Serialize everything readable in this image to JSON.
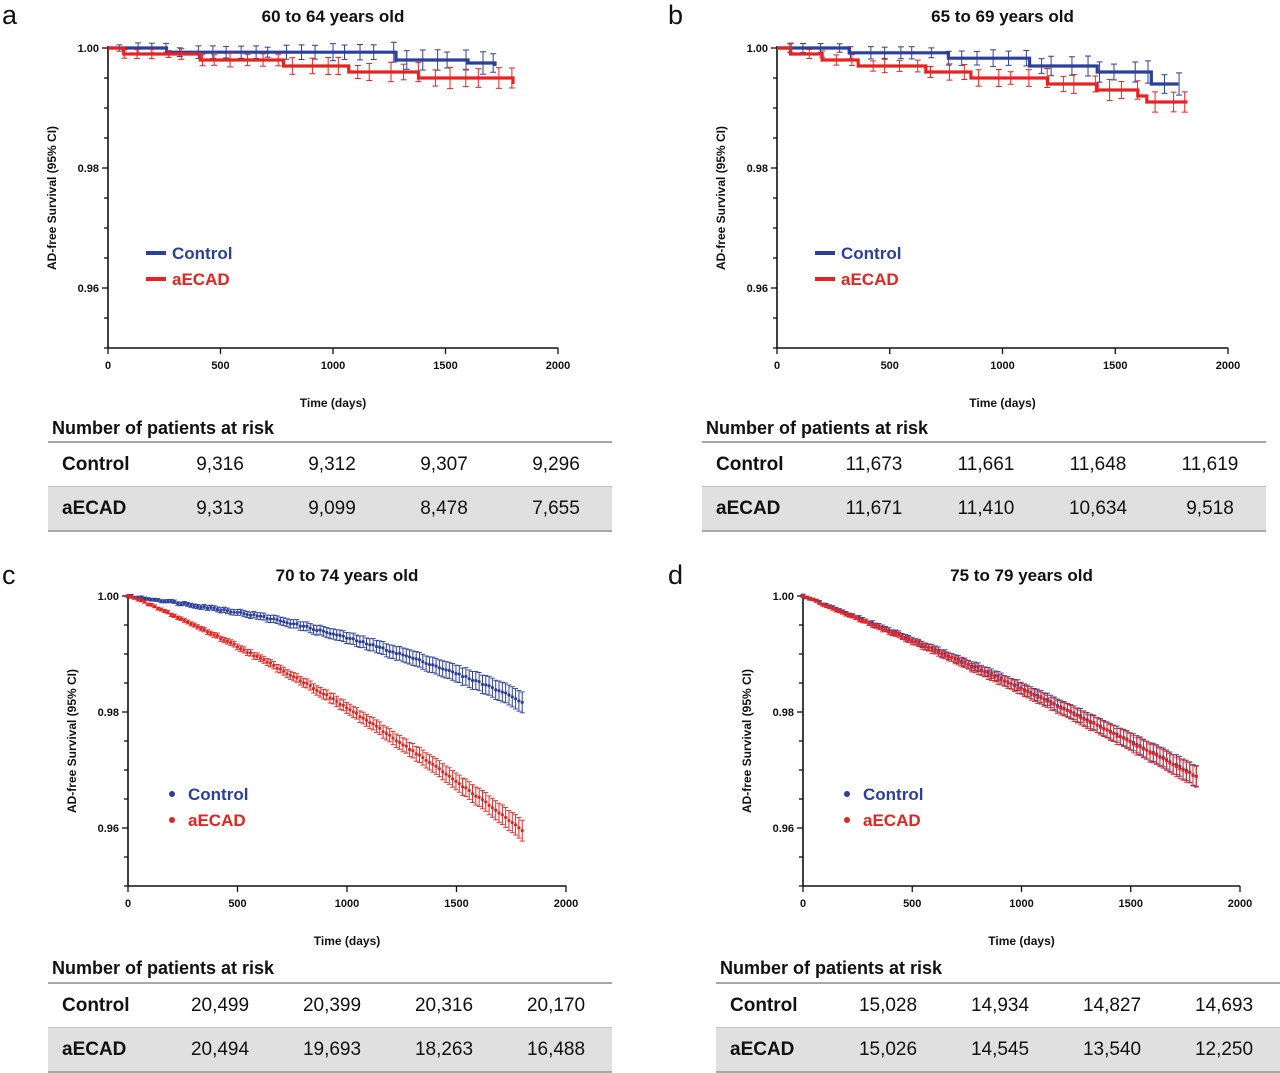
{
  "figure": {
    "colors": {
      "control": "#2b3f9c",
      "aecad": "#e52421",
      "axis": "#111111"
    },
    "risk_header": "Number of patients at risk"
  },
  "chart_data": [
    {
      "letter": "a",
      "type": "line",
      "title": "60 to 64 years old",
      "xlabel": "Time (days)",
      "ylabel": "AD-free Survival (95% CI)",
      "xlim": [
        0,
        2000
      ],
      "ylim": [
        0.95,
        1.0
      ],
      "x_ticks": [
        "0",
        "500",
        "1000",
        "1500",
        "2000"
      ],
      "y_ticks": [
        "1.00",
        "0.98",
        "0.96"
      ],
      "legend_style": "line",
      "legend_position": "middle-left",
      "series": [
        {
          "name": "Control",
          "color": "#2b3f9c",
          "x": [
            0,
            240,
            260,
            1260,
            1280,
            1580,
            1600,
            1720
          ],
          "y": [
            1.0,
            1.0,
            0.9993,
            0.9993,
            0.998,
            0.998,
            0.9975,
            0.997
          ]
        },
        {
          "name": "aECAD",
          "color": "#e52421",
          "x": [
            0,
            60,
            70,
            390,
            410,
            760,
            780,
            1050,
            1070,
            1360,
            1380,
            1780,
            1800
          ],
          "y": [
            1.0,
            1.0,
            0.999,
            0.999,
            0.998,
            0.998,
            0.997,
            0.997,
            0.996,
            0.996,
            0.995,
            0.995,
            0.994
          ]
        }
      ],
      "risk_table": {
        "rows": [
          {
            "label": "Control",
            "values": [
              "9,316",
              "9,312",
              "9,307",
              "9,296"
            ]
          },
          {
            "label": "aECAD",
            "values": [
              "9,313",
              "9,099",
              "8,478",
              "7,655"
            ]
          }
        ]
      }
    },
    {
      "letter": "b",
      "type": "line",
      "title": "65 to 69 years old",
      "xlabel": "Time (days)",
      "ylabel": "AD-free Survival (95% CI)",
      "xlim": [
        0,
        2000
      ],
      "ylim": [
        0.95,
        1.0
      ],
      "x_ticks": [
        "0",
        "500",
        "1000",
        "1500",
        "2000"
      ],
      "y_ticks": [
        "1.00",
        "0.98",
        "0.96"
      ],
      "legend_style": "line",
      "legend_position": "middle-left",
      "series": [
        {
          "name": "Control",
          "color": "#2b3f9c",
          "x": [
            0,
            300,
            320,
            740,
            760,
            1100,
            1120,
            1400,
            1420,
            1640,
            1660,
            1780
          ],
          "y": [
            1.0,
            1.0,
            0.9992,
            0.9992,
            0.9983,
            0.9983,
            0.997,
            0.997,
            0.996,
            0.996,
            0.994,
            0.994
          ]
        },
        {
          "name": "aECAD",
          "color": "#e52421",
          "x": [
            0,
            40,
            60,
            180,
            200,
            340,
            360,
            640,
            660,
            840,
            860,
            1160,
            1200,
            1380,
            1420,
            1600,
            1640,
            1820
          ],
          "y": [
            1.0,
            1.0,
            0.999,
            0.999,
            0.998,
            0.998,
            0.997,
            0.997,
            0.996,
            0.996,
            0.995,
            0.995,
            0.994,
            0.994,
            0.993,
            0.992,
            0.991,
            0.991
          ]
        }
      ],
      "risk_table": {
        "rows": [
          {
            "label": "Control",
            "values": [
              "11,673",
              "11,661",
              "11,648",
              "11,619"
            ]
          },
          {
            "label": "aECAD",
            "values": [
              "11,671",
              "11,410",
              "10,634",
              "9,518"
            ]
          }
        ]
      }
    },
    {
      "letter": "c",
      "type": "scatter",
      "title": "70 to 74 years old",
      "xlabel": "Time (days)",
      "ylabel": "AD-free Survival (95% CI)",
      "xlim": [
        0,
        2000
      ],
      "ylim": [
        0.95,
        1.0
      ],
      "x_ticks": [
        "0",
        "500",
        "1000",
        "1500",
        "2000"
      ],
      "y_ticks": [
        "1.00",
        "0.98",
        "0.96"
      ],
      "legend_style": "dot",
      "legend_position": "middle-left",
      "series": [
        {
          "name": "Control",
          "color": "#2b3f9c",
          "x": [
            0,
            100,
            200,
            300,
            400,
            500,
            600,
            700,
            800,
            900,
            1000,
            1100,
            1200,
            1300,
            1400,
            1500,
            1600,
            1700,
            1800
          ],
          "y": [
            1.0,
            0.9995,
            0.999,
            0.9984,
            0.9978,
            0.9972,
            0.9965,
            0.9957,
            0.9948,
            0.9938,
            0.9928,
            0.9917,
            0.9905,
            0.9893,
            0.988,
            0.9866,
            0.9852,
            0.9836,
            0.9818
          ]
        },
        {
          "name": "aECAD",
          "color": "#e52421",
          "x": [
            0,
            100,
            200,
            300,
            400,
            500,
            600,
            700,
            800,
            900,
            1000,
            1100,
            1200,
            1300,
            1400,
            1500,
            1600,
            1700,
            1800
          ],
          "y": [
            1.0,
            0.9985,
            0.9968,
            0.995,
            0.9932,
            0.9913,
            0.9893,
            0.9873,
            0.9852,
            0.983,
            0.9807,
            0.9783,
            0.9758,
            0.9733,
            0.9707,
            0.968,
            0.9653,
            0.9625,
            0.9595
          ]
        }
      ],
      "risk_table": {
        "rows": [
          {
            "label": "Control",
            "values": [
              "20,499",
              "20,399",
              "20,316",
              "20,170"
            ]
          },
          {
            "label": "aECAD",
            "values": [
              "20,494",
              "19,693",
              "18,263",
              "16,488"
            ]
          }
        ]
      }
    },
    {
      "letter": "d",
      "type": "scatter",
      "title": "75 to 79 years old",
      "xlabel": "Time (days)",
      "ylabel": "AD-free Survival (95% CI)",
      "xlim": [
        0,
        2000
      ],
      "ylim": [
        0.95,
        1.0
      ],
      "x_ticks": [
        "0",
        "500",
        "1000",
        "1500",
        "2000"
      ],
      "y_ticks": [
        "1.00",
        "0.98",
        "0.96"
      ],
      "legend_style": "dot",
      "legend_position": "middle-left",
      "series": [
        {
          "name": "Control",
          "color": "#2b3f9c",
          "x": [
            0,
            100,
            200,
            300,
            400,
            500,
            600,
            700,
            800,
            900,
            1000,
            1100,
            1200,
            1300,
            1400,
            1500,
            1600,
            1700,
            1800
          ],
          "y": [
            1.0,
            0.9985,
            0.997,
            0.9955,
            0.994,
            0.9924,
            0.9908,
            0.9892,
            0.9876,
            0.9859,
            0.9842,
            0.9824,
            0.9806,
            0.9787,
            0.9768,
            0.9749,
            0.973,
            0.971,
            0.969
          ]
        },
        {
          "name": "aECAD",
          "color": "#e52421",
          "x": [
            0,
            100,
            200,
            300,
            400,
            500,
            600,
            700,
            800,
            900,
            1000,
            1100,
            1200,
            1300,
            1400,
            1500,
            1600,
            1700,
            1800
          ],
          "y": [
            1.0,
            0.9984,
            0.9969,
            0.9953,
            0.9938,
            0.9922,
            0.9906,
            0.989,
            0.9873,
            0.9856,
            0.9839,
            0.9821,
            0.9803,
            0.9785,
            0.9766,
            0.9747,
            0.9728,
            0.9708,
            0.9688
          ]
        }
      ],
      "risk_table": {
        "rows": [
          {
            "label": "Control",
            "values": [
              "15,028",
              "14,934",
              "14,827",
              "14,693"
            ]
          },
          {
            "label": "aECAD",
            "values": [
              "15,026",
              "14,545",
              "13,540",
              "12,250"
            ]
          }
        ]
      }
    }
  ]
}
